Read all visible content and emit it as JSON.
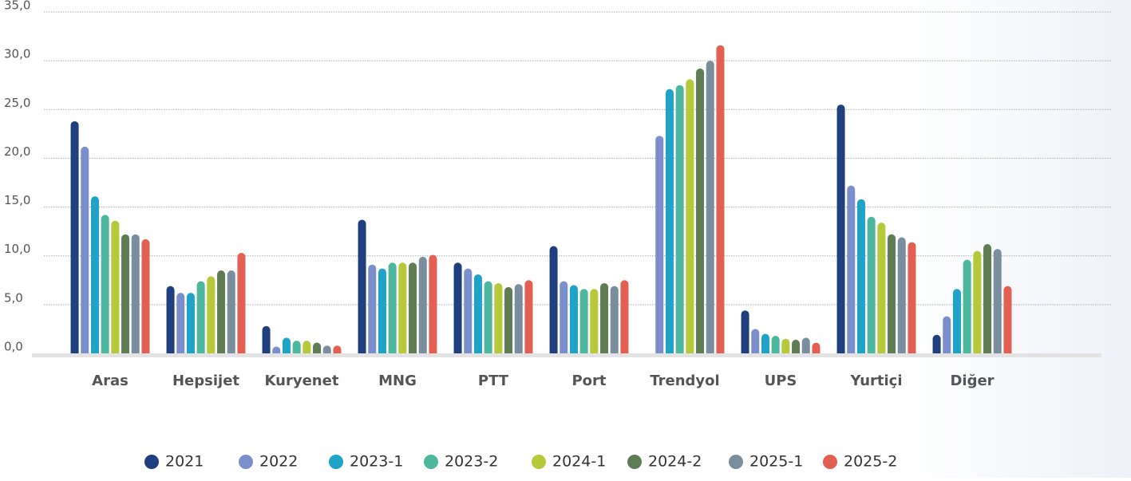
{
  "chart_data": {
    "type": "bar",
    "categories": [
      "Aras",
      "Hepsijet",
      "Kuryenet",
      "MNG",
      "PTT",
      "Port",
      "Trendyol",
      "UPS",
      "Yurtiçi",
      "Diğer"
    ],
    "series": [
      {
        "name": "2021",
        "color": "#1f3f7f",
        "values": [
          23.8,
          6.9,
          2.8,
          13.7,
          9.3,
          11.0,
          null,
          4.4,
          25.5,
          1.9
        ]
      },
      {
        "name": "2022",
        "color": "#7b8fcc",
        "values": [
          21.2,
          6.2,
          0.7,
          9.1,
          8.7,
          7.4,
          22.3,
          2.5,
          17.2,
          3.8
        ]
      },
      {
        "name": "2023-1",
        "color": "#1fa3c7",
        "values": [
          16.1,
          6.2,
          1.6,
          8.7,
          8.1,
          7.0,
          27.1,
          2.0,
          15.8,
          6.6
        ]
      },
      {
        "name": "2023-2",
        "color": "#4bb89e",
        "values": [
          14.2,
          7.4,
          1.3,
          9.3,
          7.4,
          6.6,
          27.5,
          1.8,
          14.0,
          9.6
        ]
      },
      {
        "name": "2024-1",
        "color": "#b5c93a",
        "values": [
          13.6,
          7.9,
          1.3,
          9.3,
          7.2,
          6.6,
          28.1,
          1.5,
          13.4,
          10.5
        ]
      },
      {
        "name": "2024-2",
        "color": "#5e7d55",
        "values": [
          12.2,
          8.5,
          1.1,
          9.3,
          6.8,
          7.2,
          29.2,
          1.4,
          12.2,
          11.2
        ]
      },
      {
        "name": "2025-1",
        "color": "#7a8f9e",
        "values": [
          12.2,
          8.5,
          0.8,
          9.9,
          7.1,
          6.9,
          30.0,
          1.6,
          11.9,
          10.7
        ]
      },
      {
        "name": "2025-2",
        "color": "#e35f52",
        "values": [
          11.7,
          10.3,
          0.8,
          10.1,
          7.5,
          7.5,
          31.6,
          1.1,
          11.4,
          6.9
        ]
      }
    ],
    "ylim": [
      0,
      35
    ],
    "yticks": [
      {
        "value": 0,
        "label": "0,0"
      },
      {
        "value": 5,
        "label": "5,0"
      },
      {
        "value": 10,
        "label": "10,0"
      },
      {
        "value": 15,
        "label": "15,0"
      },
      {
        "value": 20,
        "label": "20,0"
      },
      {
        "value": 25,
        "label": "25,0"
      },
      {
        "value": 30,
        "label": "30,0"
      },
      {
        "value": 35,
        "label": "35,0"
      }
    ],
    "grid": true
  }
}
